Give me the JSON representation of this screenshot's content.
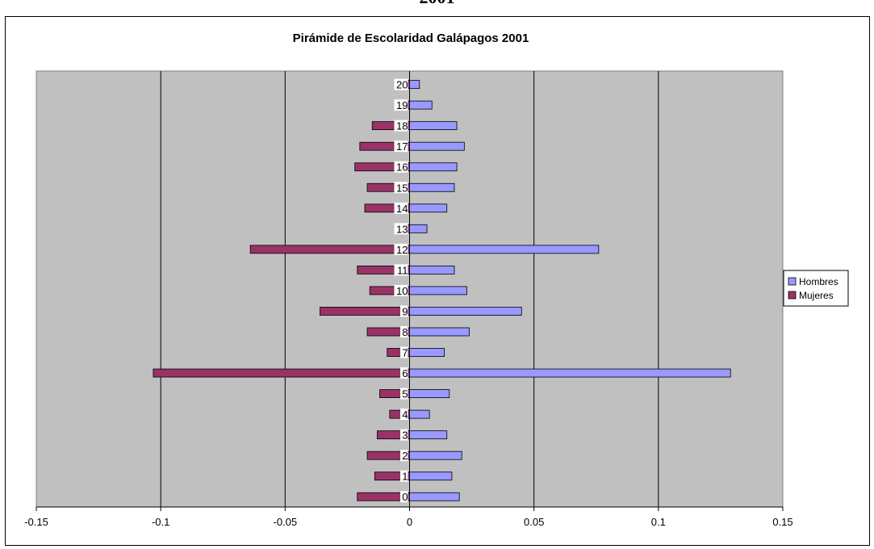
{
  "page_header": {
    "clipped_text": "2001"
  },
  "chart_data": {
    "type": "bar",
    "orientation": "horizontal",
    "title": "Pirámide de Escolaridad Galápagos 2001",
    "categories": [
      "0",
      "1",
      "2",
      "3",
      "4",
      "5",
      "6",
      "7",
      "8",
      "9",
      "10",
      "11",
      "12",
      "13",
      "14",
      "15",
      "16",
      "17",
      "18",
      "19",
      "20"
    ],
    "series": [
      {
        "name": "Hombres",
        "color": "#9999ff",
        "values": [
          0.02,
          0.017,
          0.021,
          0.015,
          0.008,
          0.016,
          0.129,
          0.014,
          0.024,
          0.045,
          0.023,
          0.018,
          0.076,
          0.007,
          0.015,
          0.018,
          0.019,
          0.022,
          0.019,
          0.009,
          0.004
        ]
      },
      {
        "name": "Mujeres",
        "color": "#993366",
        "values": [
          -0.021,
          -0.014,
          -0.017,
          -0.013,
          -0.008,
          -0.012,
          -0.103,
          -0.009,
          -0.017,
          -0.036,
          -0.016,
          -0.021,
          -0.064,
          -0.004,
          -0.018,
          -0.017,
          -0.022,
          -0.02,
          -0.015,
          -0.003,
          -0.004
        ]
      }
    ],
    "xlim": [
      -0.15,
      0.15
    ],
    "xticks": [
      "-0.15",
      "-0.1",
      "-0.05",
      "0",
      "0.05",
      "0.1",
      "0.15"
    ],
    "plot_background": "#c0c0c0",
    "grid": true,
    "legend_position": "right"
  }
}
